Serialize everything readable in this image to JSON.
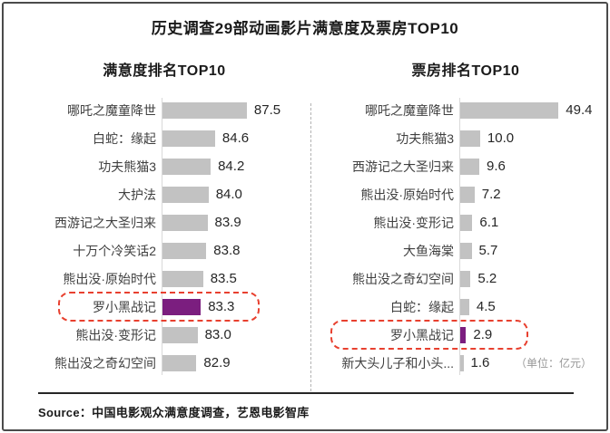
{
  "frame": {
    "title": "历史调查29部动画影片满意度及票房TOP10",
    "source": "Source：中国电影观众满意度调查，艺恩电影智库"
  },
  "colors": {
    "bar": "#c2c2c2",
    "highlight_bar": "#7b1e7f",
    "highlight_border": "#e8402f",
    "axis": "#d9d9d9"
  },
  "chart_data": [
    {
      "type": "bar",
      "orientation": "horizontal",
      "title": "满意度排名TOP10",
      "categories": [
        "哪吒之魔童降世",
        "白蛇：缘起",
        "功夫熊猫3",
        "大护法",
        "西游记之大圣归来",
        "十万个冷笑话2",
        "熊出没·原始时代",
        "罗小黑战记",
        "熊出没·变形记",
        "熊出没之奇幻空间"
      ],
      "values": [
        87.5,
        84.6,
        84.2,
        84.0,
        83.9,
        83.8,
        83.5,
        83.3,
        83.0,
        82.9
      ],
      "value_labels": [
        "87.5",
        "84.6",
        "84.2",
        "84.0",
        "83.9",
        "83.8",
        "83.5",
        "83.3",
        "83.0",
        "82.9"
      ],
      "highlight_category": "罗小黑战记",
      "xlim": [
        79.8,
        88.5
      ],
      "grid": false,
      "legend": false
    },
    {
      "type": "bar",
      "orientation": "horizontal",
      "title": "票房排名TOP10",
      "categories": [
        "哪吒之魔童降世",
        "功夫熊猫3",
        "西游记之大圣归来",
        "熊出没·原始时代",
        "熊出没·变形记",
        "大鱼海棠",
        "熊出没之奇幻空间",
        "白蛇：缘起",
        "罗小黑战记",
        "新大头儿子和小头..."
      ],
      "values": [
        49.4,
        10.0,
        9.6,
        7.2,
        6.1,
        5.7,
        5.2,
        4.5,
        2.9,
        1.6
      ],
      "value_labels": [
        "49.4",
        "10.0",
        "9.6",
        "7.2",
        "6.1",
        "5.7",
        "5.2",
        "4.5",
        "2.9",
        "1.6"
      ],
      "highlight_category": "罗小黑战记",
      "unit_note": "（单位：亿元）",
      "xlim": [
        0,
        52
      ],
      "grid": false,
      "legend": false
    }
  ]
}
